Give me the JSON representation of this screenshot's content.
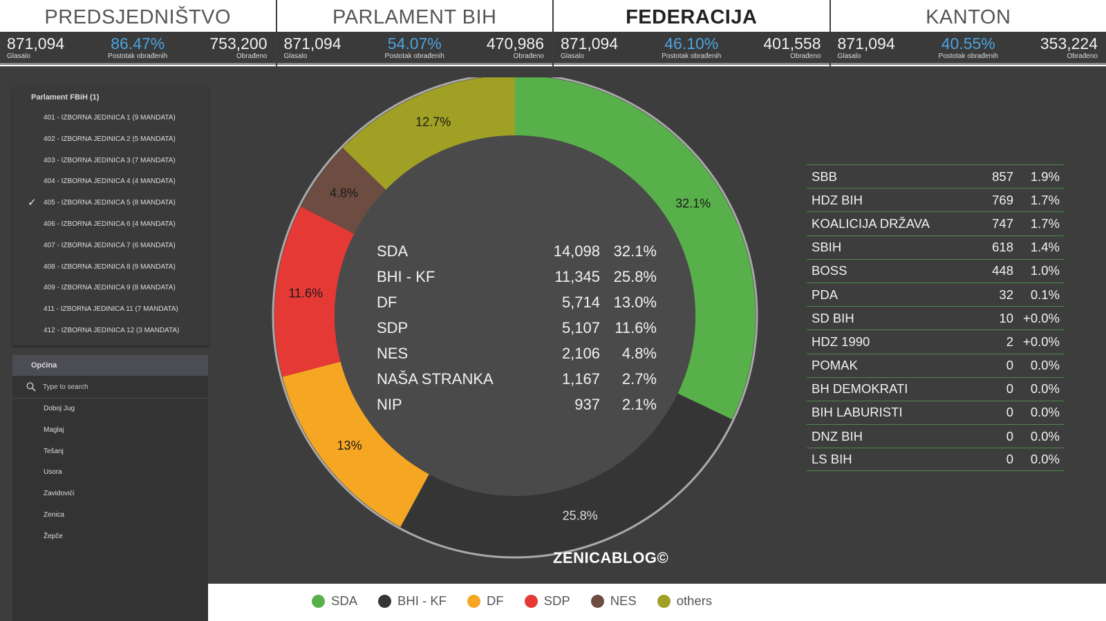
{
  "tabs": [
    {
      "title": "PREDSJEDNIŠTVO",
      "active": false,
      "voted": "871,094",
      "voted_label": "Glasalo",
      "pct": "86.47%",
      "pct_label": "Postotak obrađenih",
      "processed": "753,200",
      "processed_label": "Obrađeno"
    },
    {
      "title": "PARLAMENT BIH",
      "active": false,
      "voted": "871,094",
      "voted_label": "Glasalo",
      "pct": "54.07%",
      "pct_label": "Postotak obrađenih",
      "processed": "470,986",
      "processed_label": "Obrađeno"
    },
    {
      "title": "FEDERACIJA",
      "active": true,
      "voted": "871,094",
      "voted_label": "Glasalo",
      "pct": "46.10%",
      "pct_label": "Postotak obrađenih",
      "processed": "401,558",
      "processed_label": "Obrađeno"
    },
    {
      "title": "KANTON",
      "active": false,
      "voted": "871,094",
      "voted_label": "Glasalo",
      "pct": "40.55%",
      "pct_label": "Postotak obrađenih",
      "processed": "353,224",
      "processed_label": "Obrađeno"
    }
  ],
  "sidebar": {
    "parliament_title": "Parlament FBiH (1)",
    "units": [
      {
        "label": "401 - IZBORNA JEDINICA 1 (9 MANDATA)",
        "selected": false
      },
      {
        "label": "402 - IZBORNA JEDINICA 2 (5 MANDATA)",
        "selected": false
      },
      {
        "label": "403 - IZBORNA JEDINICA 3 (7 MANDATA)",
        "selected": false
      },
      {
        "label": "404 - IZBORNA JEDINICA 4 (4 MANDATA)",
        "selected": false
      },
      {
        "label": "405 - IZBORNA JEDINICA 5 (8 MANDATA)",
        "selected": true
      },
      {
        "label": "406 - IZBORNA JEDINICA 6 (4 MANDATA)",
        "selected": false
      },
      {
        "label": "407 - IZBORNA JEDINICA 7 (6 MANDATA)",
        "selected": false
      },
      {
        "label": "408 - IZBORNA JEDINICA 8 (9 MANDATA)",
        "selected": false
      },
      {
        "label": "409 - IZBORNA JEDINICA 9 (8 MANDATA)",
        "selected": false
      },
      {
        "label": "411 - IZBORNA JEDINICA 11 (7 MANDATA)",
        "selected": false
      },
      {
        "label": "412 - IZBORNA JEDINICA 12 (3 MANDATA)",
        "selected": false
      }
    ],
    "municipality_title": "Općina",
    "search_placeholder": "Type to search",
    "municipalities": [
      "Doboj Jug",
      "Maglaj",
      "Tešanj",
      "Usora",
      "Zavidovići",
      "Zenica",
      "Žepče"
    ]
  },
  "chart_data": {
    "type": "pie",
    "variant": "donut",
    "slices": [
      {
        "name": "SDA",
        "value": 32.1,
        "label": "32.1%",
        "color": "#58b04a"
      },
      {
        "name": "BHI - KF",
        "value": 25.8,
        "label": "25.8%",
        "color": "#353535"
      },
      {
        "name": "DF",
        "value": 13.0,
        "label": "13%",
        "color": "#f5a623"
      },
      {
        "name": "SDP",
        "value": 11.6,
        "label": "11.6%",
        "color": "#e53935"
      },
      {
        "name": "NES",
        "value": 4.8,
        "label": "4.8%",
        "color": "#6d4c41"
      },
      {
        "name": "others",
        "value": 12.7,
        "label": "12.7%",
        "color": "#a0a024"
      }
    ],
    "legend_position": "bottom"
  },
  "center_table": [
    {
      "name": "SDA",
      "votes": "14,098",
      "pct": "32.1%"
    },
    {
      "name": "BHI - KF",
      "votes": "11,345",
      "pct": "25.8%"
    },
    {
      "name": "DF",
      "votes": "5,714",
      "pct": "13.0%"
    },
    {
      "name": "SDP",
      "votes": "5,107",
      "pct": "11.6%"
    },
    {
      "name": "NES",
      "votes": "2,106",
      "pct": "4.8%"
    },
    {
      "name": "NAŠA STRANKA",
      "votes": "1,167",
      "pct": "2.7%"
    },
    {
      "name": "NIP",
      "votes": "937",
      "pct": "2.1%"
    }
  ],
  "right_table": [
    {
      "name": "SBB",
      "votes": "857",
      "pct": "1.9%"
    },
    {
      "name": "HDZ BIH",
      "votes": "769",
      "pct": "1.7%"
    },
    {
      "name": "KOALICIJA DRŽAVA",
      "votes": "747",
      "pct": "1.7%"
    },
    {
      "name": "SBIH",
      "votes": "618",
      "pct": "1.4%"
    },
    {
      "name": "BOSS",
      "votes": "448",
      "pct": "1.0%"
    },
    {
      "name": "PDA",
      "votes": "32",
      "pct": "0.1%"
    },
    {
      "name": "SD BIH",
      "votes": "10",
      "pct": "+0.0%"
    },
    {
      "name": "HDZ 1990",
      "votes": "2",
      "pct": "+0.0%"
    },
    {
      "name": "POMAK",
      "votes": "0",
      "pct": "0.0%"
    },
    {
      "name": "BH DEMOKRATI",
      "votes": "0",
      "pct": "0.0%"
    },
    {
      "name": "BIH LABURISTI",
      "votes": "0",
      "pct": "0.0%"
    },
    {
      "name": "DNZ BIH",
      "votes": "0",
      "pct": "0.0%"
    },
    {
      "name": "LS BIH",
      "votes": "0",
      "pct": "0.0%"
    }
  ],
  "watermark": "ZENICABLOG©"
}
